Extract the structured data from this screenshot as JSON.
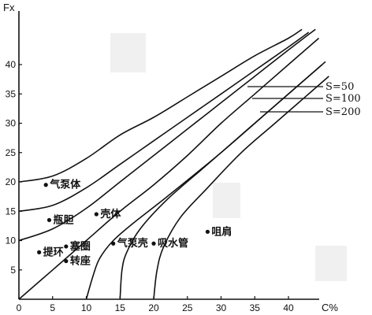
{
  "chart_data": {
    "type": "line",
    "xlabel": "C%",
    "ylabel": "Fx",
    "xlim": [
      0,
      45
    ],
    "ylim": [
      0,
      45
    ],
    "x_ticks": [
      "0",
      "5",
      "10",
      "15",
      "20",
      "25",
      "30",
      "35",
      "40"
    ],
    "y_ticks": [
      "5",
      "10",
      "15",
      "20",
      "25",
      "30",
      "35",
      "40"
    ],
    "grid": false,
    "legend": [
      "S=50",
      "S=100",
      "S=200"
    ],
    "series": [
      {
        "x": [
          0,
          5,
          10,
          15,
          20,
          25,
          30,
          35,
          40,
          42
        ],
        "y": [
          20,
          21,
          24,
          28,
          31,
          34.5,
          38,
          41.5,
          44.5,
          46
        ]
      },
      {
        "x": [
          0,
          5,
          10,
          15,
          20,
          25,
          30,
          35,
          40,
          43
        ],
        "y": [
          15,
          16,
          19,
          23,
          27,
          31,
          35,
          39,
          43,
          45.5
        ]
      },
      {
        "x": [
          0,
          5,
          10,
          15,
          20,
          25,
          30,
          35,
          40,
          44
        ],
        "y": [
          10,
          12,
          15.5,
          20,
          24.5,
          29,
          33.5,
          38,
          42.5,
          46
        ]
      },
      {
        "x": [
          0,
          5,
          10,
          15,
          20,
          25,
          30,
          35,
          40,
          44.5
        ],
        "y": [
          0,
          5,
          10,
          15,
          19.5,
          24.5,
          30,
          35,
          40,
          44.5
        ]
      },
      {
        "x": [
          10,
          11,
          12,
          14,
          17,
          22,
          30,
          38,
          45
        ],
        "y": [
          0,
          4,
          7,
          10,
          13,
          17.5,
          25,
          33,
          40
        ]
      },
      {
        "x": [
          15,
          15.3,
          16,
          18,
          22,
          28,
          34,
          40,
          45.5
        ],
        "y": [
          0,
          5,
          8,
          12,
          17,
          23,
          29,
          35,
          40.5
        ]
      },
      {
        "x": [
          20,
          20.5,
          21.5,
          24,
          28,
          33,
          38,
          42,
          46
        ],
        "y": [
          0,
          5,
          9,
          14,
          19,
          25,
          30,
          34,
          38
        ]
      }
    ],
    "annotations": [
      {
        "text": "气泵体",
        "x": 4,
        "y": 19.5
      },
      {
        "text": "瓶胆",
        "x": 4.5,
        "y": 13.5
      },
      {
        "text": "壳体",
        "x": 11.5,
        "y": 14.5
      },
      {
        "text": "提环",
        "x": 3,
        "y": 8
      },
      {
        "text": "塞圈",
        "x": 7,
        "y": 9
      },
      {
        "text": "转座",
        "x": 7,
        "y": 6.5
      },
      {
        "text": "气泵壳",
        "x": 14,
        "y": 9.5
      },
      {
        "text": "吸水管",
        "x": 20,
        "y": 9.5
      },
      {
        "text": "咀肩",
        "x": 28,
        "y": 11.5
      }
    ]
  }
}
